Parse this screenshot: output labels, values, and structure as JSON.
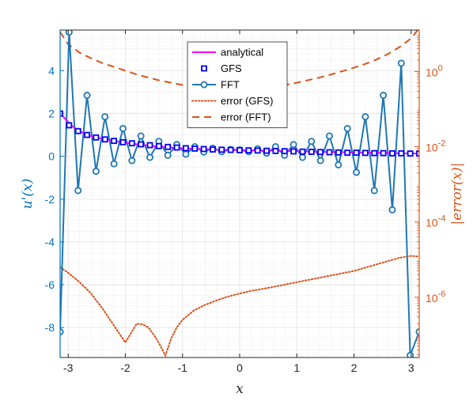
{
  "chart_data": {
    "type": "line",
    "xlabel": "x",
    "ylabel_left": "u'(x)",
    "ylabel_right": "|error(x)|",
    "xlim": [
      -3.1416,
      3.1416
    ],
    "ylim_left": [
      -9.4,
      5.9
    ],
    "ylim_right_log10": [
      -7.6,
      1.1
    ],
    "right_axis_scale": "log",
    "grid": true,
    "minor_grid": true,
    "legend_position": "top-center",
    "x_ticks": [
      -3,
      -2,
      -1,
      0,
      1,
      2,
      3
    ],
    "x_tick_labels": [
      "-3",
      "-2",
      "-1",
      "0",
      "1",
      "2",
      "3"
    ],
    "y_left_ticks": [
      4,
      2,
      0,
      -2,
      -4,
      -6,
      -8
    ],
    "y_left_tick_labels": [
      "4",
      "2",
      "0",
      "-2",
      "-4",
      "-6",
      "-8"
    ],
    "y_right_ticks": [
      0,
      -2,
      -4,
      -6
    ],
    "y_right_tick_labels": [
      {
        "base": "10",
        "exp": "0"
      },
      {
        "base": "10",
        "exp": "-2"
      },
      {
        "base": "10",
        "exp": "-4"
      },
      {
        "base": "10",
        "exp": "-6"
      }
    ],
    "colors": {
      "left_axis": "#0072BD",
      "right_axis": "#D95319",
      "analytical": "#FF00FF",
      "gfs": "#0000FF",
      "fft": "#1F77B4",
      "error": "#D95319",
      "grid": "#E6E6E6"
    },
    "legend": [
      {
        "label": "analytical",
        "style": "solid-line",
        "color": "#FF00FF"
      },
      {
        "label": "GFS",
        "style": "square-marker",
        "color": "#0000FF"
      },
      {
        "label": "FFT",
        "style": "line-circle",
        "color": "#1F77B4"
      },
      {
        "label": "error (GFS)",
        "style": "dotted-line",
        "color": "#D95319"
      },
      {
        "label": "error (FFT)",
        "style": "dashed-line",
        "color": "#D95319"
      }
    ],
    "series": [
      {
        "name": "analytical",
        "axis": "left",
        "x": [
          -3.1416,
          -3.05,
          -2.95,
          -2.85,
          -2.75,
          -2.6,
          -2.45,
          -2.3,
          -2.15,
          -2.0,
          -1.8,
          -1.6,
          -1.4,
          -1.2,
          -1.0,
          -0.8,
          -0.6,
          -0.4,
          -0.2,
          0.0,
          0.2,
          0.4,
          0.6,
          0.8,
          1.0,
          1.3,
          1.6,
          1.9,
          2.2,
          2.5,
          2.8,
          3.1416
        ],
        "y": [
          2.0,
          1.75,
          1.45,
          1.25,
          1.1,
          0.95,
          0.85,
          0.77,
          0.7,
          0.64,
          0.56,
          0.5,
          0.45,
          0.41,
          0.38,
          0.35,
          0.33,
          0.31,
          0.3,
          0.29,
          0.28,
          0.27,
          0.26,
          0.25,
          0.24,
          0.22,
          0.2,
          0.19,
          0.17,
          0.16,
          0.14,
          0.13
        ]
      },
      {
        "name": "GFS",
        "axis": "left",
        "x": [
          -3.1416,
          -2.9845,
          -2.8274,
          -2.6704,
          -2.5133,
          -2.3562,
          -2.1991,
          -2.042,
          -1.885,
          -1.7279,
          -1.5708,
          -1.4137,
          -1.2566,
          -1.0996,
          -0.9425,
          -0.7854,
          -0.6283,
          -0.4712,
          -0.3142,
          -0.1571,
          0.0,
          0.1571,
          0.3142,
          0.4712,
          0.6283,
          0.7854,
          0.9425,
          1.0996,
          1.2566,
          1.4137,
          1.5708,
          1.7279,
          1.885,
          2.042,
          2.1991,
          2.3562,
          2.5133,
          2.6704,
          2.8274,
          2.9845,
          3.1416
        ],
        "y": [
          2.0,
          1.45,
          1.18,
          1.0,
          0.88,
          0.79,
          0.72,
          0.66,
          0.61,
          0.56,
          0.52,
          0.48,
          0.44,
          0.41,
          0.38,
          0.36,
          0.34,
          0.32,
          0.31,
          0.3,
          0.29,
          0.28,
          0.27,
          0.26,
          0.25,
          0.24,
          0.23,
          0.22,
          0.21,
          0.2,
          0.19,
          0.18,
          0.17,
          0.17,
          0.16,
          0.15,
          0.15,
          0.14,
          0.14,
          0.13,
          0.13
        ]
      },
      {
        "name": "FFT",
        "axis": "left",
        "x": [
          -3.1416,
          -2.9845,
          -2.8274,
          -2.6704,
          -2.5133,
          -2.3562,
          -2.1991,
          -2.042,
          -1.885,
          -1.7279,
          -1.5708,
          -1.4137,
          -1.2566,
          -1.0996,
          -0.9425,
          -0.7854,
          -0.6283,
          -0.4712,
          -0.3142,
          -0.1571,
          0.0,
          0.1571,
          0.3142,
          0.4712,
          0.6283,
          0.7854,
          0.9425,
          1.0996,
          1.2566,
          1.4137,
          1.5708,
          1.7279,
          1.885,
          2.042,
          2.1991,
          2.3562,
          2.5133,
          2.6704,
          2.8274,
          2.9845,
          3.1416
        ],
        "y": [
          -8.2,
          5.8,
          -1.6,
          2.85,
          -0.7,
          1.85,
          -0.35,
          1.3,
          -0.2,
          0.95,
          -0.05,
          0.7,
          0.05,
          0.55,
          0.1,
          0.45,
          0.2,
          0.38,
          0.22,
          0.32,
          0.3,
          0.22,
          0.35,
          0.15,
          0.45,
          0.05,
          0.55,
          -0.05,
          0.7,
          -0.2,
          0.95,
          -0.4,
          1.3,
          -0.75,
          1.85,
          -1.6,
          2.85,
          -2.5,
          4.35,
          -9.3,
          -8.2
        ]
      },
      {
        "name": "error (GFS)",
        "axis": "right",
        "x": [
          -3.1416,
          -3.0,
          -2.8,
          -2.6,
          -2.4,
          -2.2,
          -2.0,
          -1.9,
          -1.8,
          -1.7,
          -1.6,
          -1.5,
          -1.4,
          -1.3,
          -1.2,
          -1.1,
          -1.0,
          -0.8,
          -0.6,
          -0.4,
          -0.2,
          0.0,
          0.2,
          0.5,
          1.0,
          1.5,
          2.0,
          2.5,
          2.8,
          3.0,
          3.1416
        ],
        "y_log10": [
          -5.2,
          -5.35,
          -5.6,
          -5.9,
          -6.3,
          -6.75,
          -7.2,
          -6.95,
          -6.7,
          -6.72,
          -6.8,
          -7.0,
          -7.25,
          -7.55,
          -7.1,
          -6.8,
          -6.6,
          -6.35,
          -6.2,
          -6.08,
          -5.98,
          -5.9,
          -5.83,
          -5.75,
          -5.6,
          -5.45,
          -5.3,
          -5.08,
          -4.95,
          -4.9,
          -4.92
        ]
      },
      {
        "name": "error (FFT)",
        "axis": "right",
        "x": [
          -3.1416,
          -3.0,
          -2.8,
          -2.6,
          -2.4,
          -2.2,
          -2.0,
          -1.8,
          -1.6,
          -1.4,
          -1.2,
          -1.0,
          -0.8,
          -0.6,
          -0.4,
          -0.2,
          0.0,
          0.2,
          0.4,
          0.6,
          0.8,
          1.0,
          1.2,
          1.4,
          1.6,
          1.8,
          2.0,
          2.2,
          2.4,
          2.6,
          2.8,
          3.0,
          3.1416
        ],
        "y_log10": [
          1.05,
          0.72,
          0.5,
          0.35,
          0.22,
          0.12,
          0.02,
          -0.08,
          -0.16,
          -0.24,
          -0.3,
          -0.36,
          -0.4,
          -0.43,
          -0.45,
          -0.46,
          -0.46,
          -0.45,
          -0.43,
          -0.4,
          -0.36,
          -0.3,
          -0.23,
          -0.16,
          -0.08,
          0.01,
          0.1,
          0.2,
          0.32,
          0.47,
          0.65,
          0.88,
          1.15
        ]
      }
    ]
  }
}
